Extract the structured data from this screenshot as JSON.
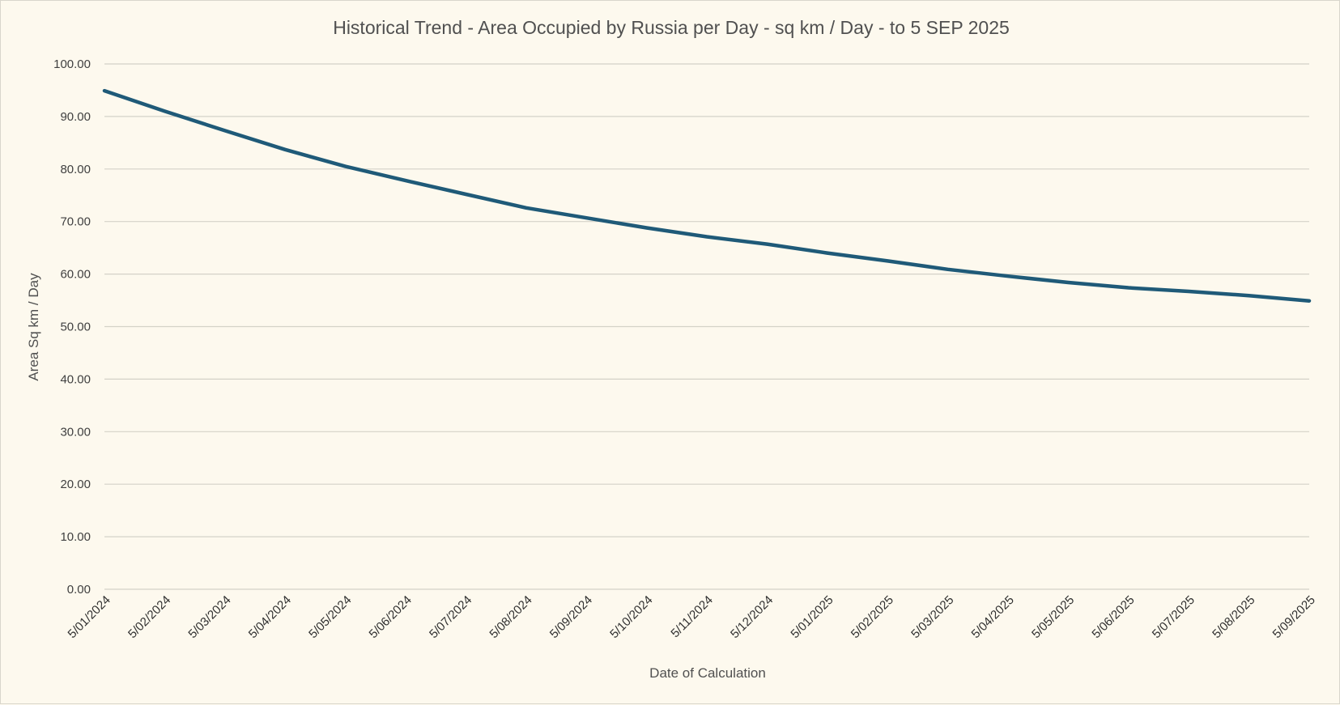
{
  "chart_data": {
    "type": "line",
    "title": "Historical Trend - Area Occupied by Russia per Day - sq km / Day - to 5 SEP 2025",
    "xlabel": "Date of Calculation",
    "ylabel": "Area Sq km / Day",
    "ylim": [
      0,
      100
    ],
    "yticks": [
      "0.00",
      "10.00",
      "20.00",
      "30.00",
      "40.00",
      "50.00",
      "60.00",
      "70.00",
      "80.00",
      "90.00",
      "100.00"
    ],
    "grid": true,
    "legend": "none",
    "categories": [
      "5/01/2024",
      "5/02/2024",
      "5/03/2024",
      "5/04/2024",
      "5/05/2024",
      "5/06/2024",
      "5/07/2024",
      "5/08/2024",
      "5/09/2024",
      "5/10/2024",
      "5/11/2024",
      "5/12/2024",
      "5/01/2025",
      "5/02/2025",
      "5/03/2025",
      "5/04/2025",
      "5/05/2025",
      "5/06/2025",
      "5/07/2025",
      "5/08/2025",
      "5/09/2025"
    ],
    "series": [
      {
        "color": "#1f5a78",
        "values": [
          94.9,
          91.0,
          87.3,
          83.7,
          80.5,
          77.8,
          75.2,
          72.6,
          70.7,
          68.8,
          67.1,
          65.7,
          64.0,
          62.5,
          60.9,
          59.6,
          58.4,
          57.4,
          56.7,
          55.9,
          54.9
        ]
      }
    ]
  }
}
